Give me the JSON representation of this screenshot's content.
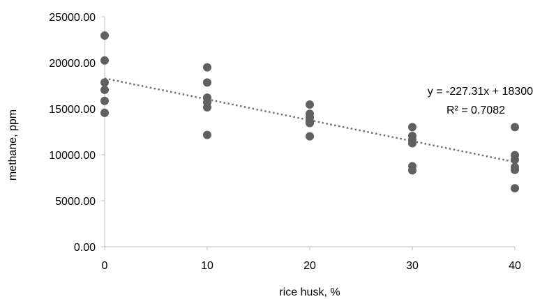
{
  "chart_data": {
    "type": "scatter",
    "xlabel": "rice husk, %",
    "ylabel": "methane, ppm",
    "xlim": [
      0,
      40
    ],
    "ylim": [
      0,
      25000
    ],
    "x_ticks": [
      0,
      10,
      20,
      30,
      40
    ],
    "y_ticks": [
      0,
      5000,
      10000,
      15000,
      20000,
      25000
    ],
    "x_tick_labels": [
      "0",
      "10",
      "20",
      "30",
      "40"
    ],
    "y_tick_labels": [
      "0.00",
      "5000.00",
      "10000.00",
      "15000.00",
      "20000.00",
      "25000.00"
    ],
    "grid": false,
    "legend": "none",
    "marker_color": "#606060",
    "trendline_color": "#707070",
    "points": [
      {
        "x": 0,
        "y": 22950
      },
      {
        "x": 0,
        "y": 20250
      },
      {
        "x": 0,
        "y": 17850
      },
      {
        "x": 0,
        "y": 17050
      },
      {
        "x": 0,
        "y": 15850
      },
      {
        "x": 0,
        "y": 14550
      },
      {
        "x": 10,
        "y": 19500
      },
      {
        "x": 10,
        "y": 17850
      },
      {
        "x": 10,
        "y": 16200
      },
      {
        "x": 10,
        "y": 15700
      },
      {
        "x": 10,
        "y": 15150
      },
      {
        "x": 10,
        "y": 12150
      },
      {
        "x": 20,
        "y": 15450
      },
      {
        "x": 20,
        "y": 14450
      },
      {
        "x": 20,
        "y": 14050
      },
      {
        "x": 20,
        "y": 13650
      },
      {
        "x": 20,
        "y": 13450
      },
      {
        "x": 20,
        "y": 12000
      },
      {
        "x": 30,
        "y": 13000
      },
      {
        "x": 30,
        "y": 12050
      },
      {
        "x": 30,
        "y": 11650
      },
      {
        "x": 30,
        "y": 11250
      },
      {
        "x": 30,
        "y": 8750
      },
      {
        "x": 30,
        "y": 8300
      },
      {
        "x": 40,
        "y": 13000
      },
      {
        "x": 40,
        "y": 9950
      },
      {
        "x": 40,
        "y": 9450
      },
      {
        "x": 40,
        "y": 8650
      },
      {
        "x": 40,
        "y": 8350
      },
      {
        "x": 40,
        "y": 6350
      }
    ],
    "trendline": {
      "slope": -227.31,
      "intercept": 18300
    },
    "annotations": {
      "equation": "y = -227.31x + 18300",
      "r_squared": "R² = 0.7082"
    }
  }
}
